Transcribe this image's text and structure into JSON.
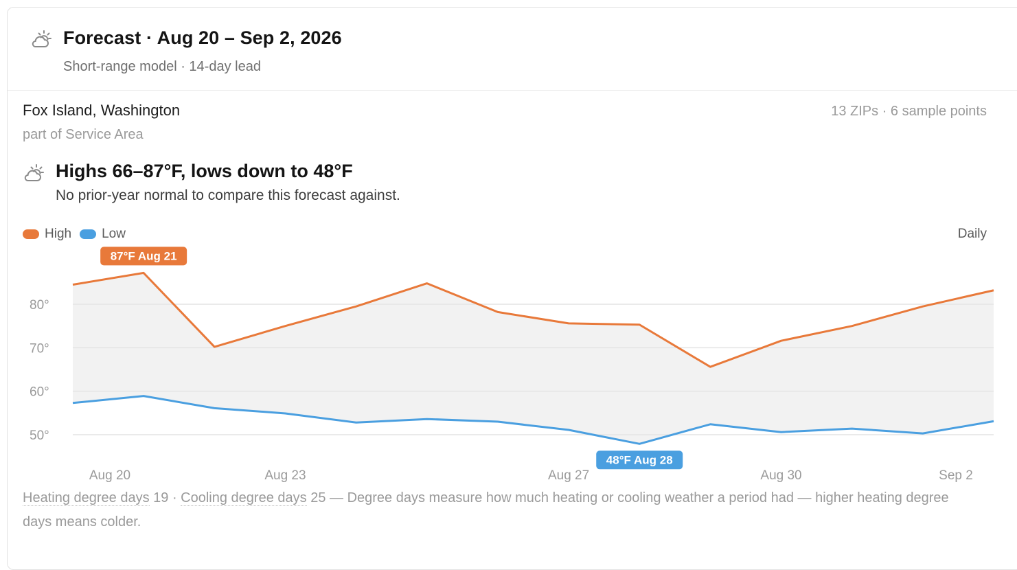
{
  "header": {
    "title": "Forecast · Aug 20 – Sep 2, 2026",
    "subtitle": "Short-range model · 14-day lead",
    "icon": "partly-cloudy-icon"
  },
  "location": {
    "name": "Fox Island, Washington",
    "part_of": "part of Service Area",
    "meta": "13 ZIPs · 6 sample points"
  },
  "summary": {
    "title": "Highs 66–87°F, lows down to 48°F",
    "subtitle": "No prior-year normal to compare this forecast against.",
    "icon": "partly-cloudy-icon"
  },
  "legend": {
    "high_label": "High",
    "low_label": "Low",
    "granularity": "Daily"
  },
  "colors": {
    "high": "#e8793a",
    "low": "#4a9fe0",
    "band": "#f2f2f2"
  },
  "chart_data": {
    "type": "line",
    "x": [
      "Aug 20",
      "Aug 21",
      "Aug 22",
      "Aug 23",
      "Aug 24",
      "Aug 25",
      "Aug 26",
      "Aug 27",
      "Aug 28",
      "Aug 29",
      "Aug 30",
      "Aug 31",
      "Sep 1",
      "Sep 2"
    ],
    "x_tick_labels": [
      "Aug 20",
      "Aug 23",
      "Aug 27",
      "Aug 30",
      "Sep 2"
    ],
    "y_tick_labels": [
      "80°",
      "70°",
      "60°",
      "50°"
    ],
    "y_ticks": [
      80,
      70,
      60,
      50
    ],
    "series": [
      {
        "name": "High",
        "values": [
          84.5,
          87.2,
          70.2,
          75,
          79.5,
          84.8,
          78.2,
          75.6,
          75.3,
          65.6,
          71.6,
          75,
          79.5,
          83.2
        ]
      },
      {
        "name": "Low",
        "values": [
          57.3,
          58.9,
          56.1,
          54.9,
          52.8,
          53.6,
          53,
          51.1,
          47.9,
          52.4,
          50.6,
          51.4,
          50.3,
          53.1
        ]
      }
    ],
    "annotations": [
      {
        "label": "87°F Aug 21",
        "series": "High",
        "index": 1
      },
      {
        "label": "48°F Aug 28",
        "series": "Low",
        "index": 8
      }
    ],
    "ylim": [
      45,
      90
    ],
    "grid": true,
    "legend_position": "top-left"
  },
  "footer": {
    "hdd_label": "Heating degree days",
    "hdd_value": " 19",
    "sep": " · ",
    "cdd_label": "Cooling degree days",
    "cdd_value": " 25",
    "explanation": " — Degree days measure how much heating or cooling weather a period had — higher heating degree days means colder."
  }
}
